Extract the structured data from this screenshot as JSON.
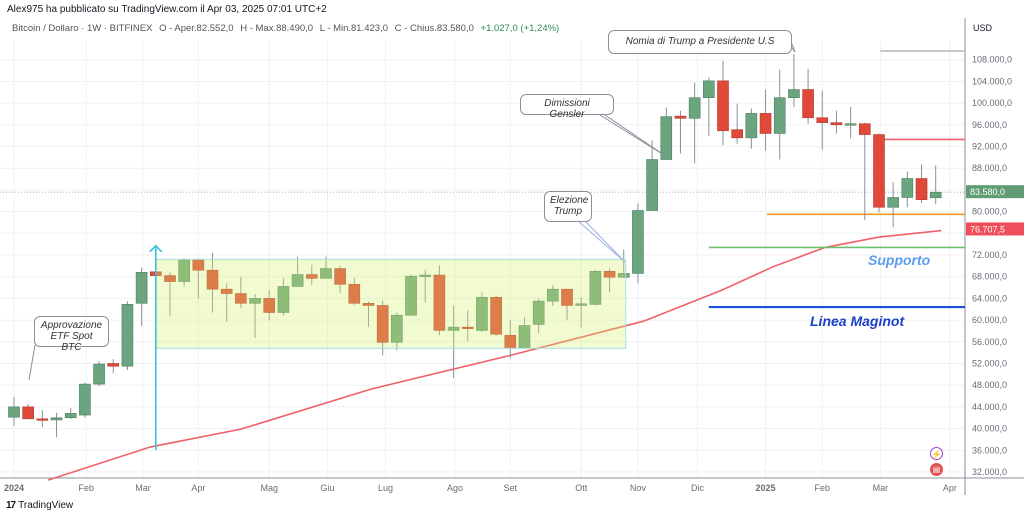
{
  "header": {
    "publisher": "Alex975 ha pubblicato su TradingView.com il Apr 03, 2025 07:01 UTC+2",
    "symbol": "Bitcoin / Dollaro · 1W · BITFINEX",
    "open": "O - Aper.82.552,0",
    "high": "H - Max.88.490,0",
    "low": "L - Min.81.423,0",
    "close": "C - Chius.83.580,0",
    "change": "+1.027,0 (+1,24%)"
  },
  "footer": {
    "logo_text": "TradingView",
    "logo_mark": "17"
  },
  "annotations": {
    "etf": "Approvazione ETF Spot BTC",
    "election": "Elezione Trump",
    "gensler": "Dimissioni Gensler",
    "nomination": "Nomia di Trump a Presidente U.S",
    "support": "Supporto",
    "maginot": "Linea Maginot"
  },
  "colors": {
    "up": "#6aa57f",
    "down": "#e0483a",
    "ma": "#f0606a",
    "orange": "#f39a1e",
    "green_line": "#6cc06c",
    "blue_line": "#1e4fd8",
    "support_text": "#5b9bf0",
    "maginot_text": "#1a3fc8"
  },
  "chart_data": {
    "type": "candlestick",
    "title": "Bitcoin / Dollaro · 1W · BITFINEX",
    "currency": "USD",
    "ylim": [
      30000,
      112000
    ],
    "y_ticks": [
      32000,
      36000,
      40000,
      44000,
      48000,
      52000,
      56000,
      60000,
      64000,
      68000,
      72000,
      76000,
      80000,
      84000,
      88000,
      92000,
      96000,
      100000,
      104000,
      108000
    ],
    "y_ticks_hidden": [
      76000,
      84000
    ],
    "x_ticks": [
      {
        "label": "2024",
        "index": 0,
        "bold": true
      },
      {
        "label": "Feb",
        "index": 5.1
      },
      {
        "label": "Mar",
        "index": 9.1
      },
      {
        "label": "Apr",
        "index": 13
      },
      {
        "label": "Mag",
        "index": 18
      },
      {
        "label": "Giu",
        "index": 22.1
      },
      {
        "label": "Lug",
        "index": 26.2
      },
      {
        "label": "Ago",
        "index": 31.1
      },
      {
        "label": "Set",
        "index": 35
      },
      {
        "label": "Ott",
        "index": 40
      },
      {
        "label": "Nov",
        "index": 44
      },
      {
        "label": "Dic",
        "index": 48.2
      },
      {
        "label": "2025",
        "index": 53,
        "bold": true
      },
      {
        "label": "Feb",
        "index": 57
      },
      {
        "label": "Mar",
        "index": 61.1
      },
      {
        "label": "Apr",
        "index": 66
      }
    ],
    "ohlc_fields": [
      "open",
      "high",
      "low",
      "close"
    ],
    "candles": [
      [
        42100,
        45800,
        40500,
        44000
      ],
      [
        44000,
        44500,
        41700,
        41800
      ],
      [
        41800,
        43400,
        40300,
        41600
      ],
      [
        41600,
        42900,
        38400,
        42000
      ],
      [
        42000,
        43800,
        41800,
        42800
      ],
      [
        42500,
        48500,
        42000,
        48200
      ],
      [
        48200,
        52400,
        47800,
        51900
      ],
      [
        52000,
        52800,
        50200,
        51500
      ],
      [
        51500,
        63500,
        50800,
        62900
      ],
      [
        63100,
        69700,
        58900,
        68800
      ],
      [
        68900,
        69200,
        68000,
        68200
      ],
      [
        68200,
        68800,
        60700,
        67100
      ],
      [
        67100,
        71400,
        66200,
        71200
      ],
      [
        71200,
        71400,
        64000,
        69200
      ],
      [
        69200,
        72400,
        61400,
        65700
      ],
      [
        65700,
        66800,
        59600,
        64900
      ],
      [
        64900,
        68000,
        62200,
        63100
      ],
      [
        63100,
        64800,
        56700,
        64000
      ],
      [
        64000,
        65500,
        60000,
        61400
      ],
      [
        61400,
        67700,
        60800,
        66200
      ],
      [
        66200,
        71700,
        66200,
        68400
      ],
      [
        68400,
        70200,
        66500,
        67700
      ],
      [
        67700,
        71700,
        67700,
        69500
      ],
      [
        69500,
        70000,
        65000,
        66600
      ],
      [
        66600,
        67800,
        62800,
        63100
      ],
      [
        63100,
        63400,
        58700,
        62700
      ],
      [
        62700,
        63600,
        53500,
        55900
      ],
      [
        55900,
        61400,
        54400,
        60900
      ],
      [
        60900,
        68400,
        60900,
        68100
      ],
      [
        68200,
        69300,
        63300,
        68300
      ],
      [
        68300,
        70100,
        57200,
        58100
      ],
      [
        58100,
        62700,
        49300,
        58700
      ],
      [
        58700,
        61800,
        56100,
        58500
      ],
      [
        58100,
        65100,
        57800,
        64200
      ],
      [
        64200,
        64500,
        57100,
        57400
      ],
      [
        57200,
        60000,
        53000,
        54800
      ],
      [
        54800,
        60500,
        54800,
        59000
      ],
      [
        59200,
        64000,
        57600,
        63500
      ],
      [
        63500,
        66400,
        62600,
        65700
      ],
      [
        65700,
        65700,
        60000,
        62700
      ],
      [
        62900,
        64200,
        58700,
        63000
      ],
      [
        62900,
        69300,
        62700,
        69000
      ],
      [
        69000,
        69500,
        65100,
        67900
      ],
      [
        67900,
        73000,
        67800,
        68600
      ],
      [
        68600,
        81500,
        66800,
        80200
      ],
      [
        80200,
        93100,
        80200,
        89600
      ],
      [
        89600,
        99200,
        89600,
        97500
      ],
      [
        97600,
        98600,
        90700,
        97200
      ],
      [
        97200,
        103800,
        88900,
        101000
      ],
      [
        101000,
        104700,
        94000,
        104100
      ],
      [
        104100,
        107800,
        92200,
        94900
      ],
      [
        95100,
        99900,
        92500,
        93600
      ],
      [
        93600,
        99000,
        91600,
        98100
      ],
      [
        98100,
        102500,
        91200,
        94400
      ],
      [
        94400,
        106200,
        89600,
        101000
      ],
      [
        101000,
        109100,
        99300,
        102500
      ],
      [
        102500,
        106300,
        96200,
        97300
      ],
      [
        97300,
        102300,
        91400,
        96400
      ],
      [
        96400,
        98600,
        94400,
        96000
      ],
      [
        96000,
        99300,
        93500,
        96200
      ],
      [
        96200,
        96400,
        78400,
        94200
      ],
      [
        94200,
        94400,
        79800,
        80800
      ],
      [
        80800,
        85400,
        77100,
        82600
      ],
      [
        82600,
        87400,
        80800,
        86100
      ],
      [
        86100,
        88700,
        81600,
        82200
      ],
      [
        82552,
        88490,
        81423,
        83580
      ]
    ],
    "moving_average": {
      "label": "76.707,5",
      "value": 76707.5,
      "points": [
        [
          2.4,
          30500
        ],
        [
          9.6,
          36600
        ],
        [
          16,
          39900
        ],
        [
          25.2,
          47300
        ],
        [
          35,
          53500
        ],
        [
          44.4,
          59800
        ],
        [
          49.9,
          65500
        ],
        [
          53.5,
          69800
        ],
        [
          57.2,
          73400
        ],
        [
          61,
          75300
        ],
        [
          65.4,
          76500
        ]
      ]
    },
    "last_price": {
      "label": "83.580,0",
      "value": 83580
    },
    "horizontal_lines": [
      {
        "name": "orange-level",
        "price": 79500,
        "from_index": 53.1,
        "color": "#f39a1e"
      },
      {
        "name": "red-level",
        "price": 93300,
        "from_index": 61.1,
        "color": "#f0606a"
      },
      {
        "name": "support-line",
        "price": 73400,
        "from_index": 49,
        "color": "#6cc06c"
      },
      {
        "name": "maginot-line",
        "price": 62400,
        "from_index": 49,
        "color": "#1e4fd8"
      },
      {
        "name": "gray-level",
        "price": 109600,
        "from_index": 61.1,
        "color": "#b8bcc4"
      }
    ],
    "range_box": {
      "from_index": 10,
      "to_index": 43,
      "top": 71200,
      "bottom": 54800
    },
    "arrow": {
      "index": 10,
      "from_price": 36000,
      "to_price": 73700
    }
  }
}
